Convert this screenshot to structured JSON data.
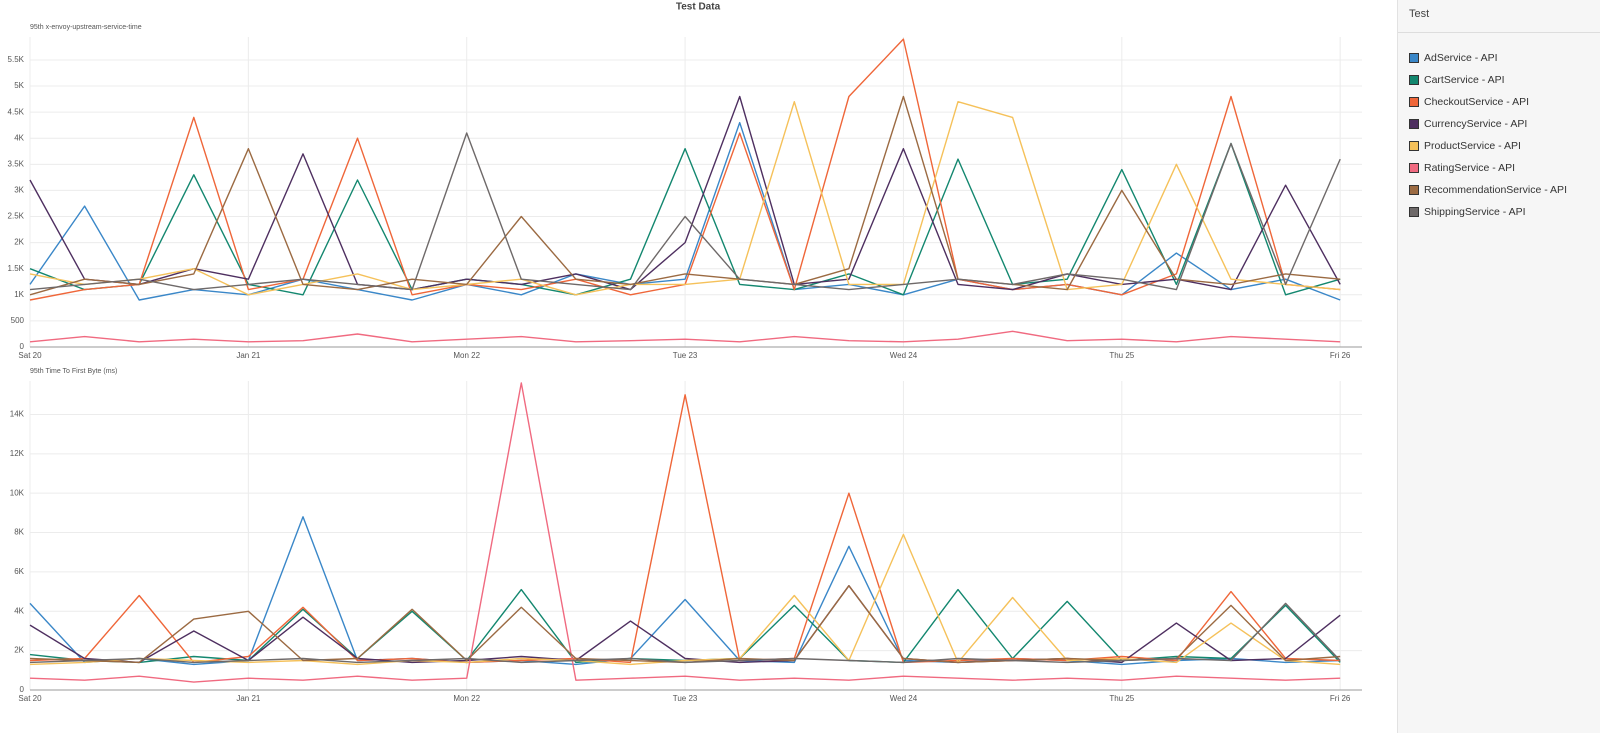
{
  "page_title": "Test Data",
  "legend": {
    "title": "Test"
  },
  "chart_data": [
    {
      "type": "line",
      "subtitle": "95th x-envoy-upstream-service-time",
      "x": [
        0,
        0.25,
        0.5,
        0.75,
        1,
        1.25,
        1.5,
        1.75,
        2,
        2.25,
        2.5,
        2.75,
        3,
        3.25,
        3.5,
        3.75,
        4,
        4.25,
        4.5,
        4.75,
        5,
        5.25,
        5.5,
        5.75,
        6
      ],
      "xlim": [
        0,
        6.1
      ],
      "xticks": [
        {
          "value": 0,
          "label": "Sat 20"
        },
        {
          "value": 1,
          "label": "Jan 21"
        },
        {
          "value": 2,
          "label": "Mon 22"
        },
        {
          "value": 3,
          "label": "Tue 23"
        },
        {
          "value": 4,
          "label": "Wed 24"
        },
        {
          "value": 5,
          "label": "Thu 25"
        },
        {
          "value": 6,
          "label": "Fri 26"
        }
      ],
      "ylim": [
        0,
        5940
      ],
      "yticks": [
        0,
        500,
        {
          "value": 1000,
          "label": "1K"
        },
        {
          "value": 1500,
          "label": "1.5K"
        },
        {
          "value": 2000,
          "label": "2K"
        },
        {
          "value": 2500,
          "label": "2.5K"
        },
        {
          "value": 3000,
          "label": "3K"
        },
        {
          "value": 3500,
          "label": "3.5K"
        },
        {
          "value": 4000,
          "label": "4K"
        },
        {
          "value": 4500,
          "label": "4.5K"
        },
        {
          "value": 5000,
          "label": "5K"
        },
        {
          "value": 5500,
          "label": "5.5K"
        }
      ],
      "grid": true,
      "series": [
        {
          "name": "AdService - API",
          "color": "#3a87c8",
          "values": [
            1200,
            2700,
            900,
            1100,
            1000,
            1300,
            1100,
            900,
            1200,
            1000,
            1400,
            1200,
            1300,
            4300,
            1100,
            1200,
            1000,
            1300,
            1100,
            1200,
            1000,
            1800,
            1100,
            1300,
            900
          ]
        },
        {
          "name": "CartService - API",
          "color": "#13876f",
          "values": [
            1500,
            1100,
            1200,
            3300,
            1200,
            1000,
            3200,
            1100,
            1300,
            1200,
            1000,
            1300,
            3800,
            1200,
            1100,
            1400,
            1000,
            3600,
            1200,
            1300,
            3400,
            1200,
            3900,
            1000,
            1300
          ]
        },
        {
          "name": "CheckoutService - API",
          "color": "#ef6639",
          "values": [
            900,
            1100,
            1200,
            4400,
            1100,
            1300,
            4000,
            1000,
            1200,
            1100,
            1300,
            1000,
            1200,
            4100,
            1100,
            4800,
            5900,
            1300,
            1100,
            1200,
            1000,
            1400,
            4800,
            1200,
            1100
          ]
        },
        {
          "name": "CurrencyService - API",
          "color": "#4e2f60",
          "values": [
            3200,
            1300,
            1200,
            1500,
            1300,
            3700,
            1200,
            1100,
            1300,
            1200,
            1400,
            1100,
            2000,
            4800,
            1200,
            1300,
            3800,
            1200,
            1100,
            1400,
            1200,
            1300,
            1100,
            3100,
            1200
          ]
        },
        {
          "name": "ProductService - API",
          "color": "#f5c15a",
          "values": [
            1400,
            1200,
            1300,
            1500,
            1000,
            1200,
            1400,
            1100,
            1200,
            1300,
            1000,
            1200,
            1200,
            1300,
            4700,
            1200,
            1200,
            4700,
            4400,
            1100,
            1200,
            3500,
            1300,
            1200,
            1100
          ]
        },
        {
          "name": "RatingService - API",
          "color": "#f06a80",
          "values": [
            100,
            200,
            100,
            150,
            100,
            120,
            250,
            100,
            150,
            200,
            100,
            120,
            150,
            100,
            200,
            120,
            100,
            150,
            300,
            120,
            150,
            100,
            200,
            150,
            100
          ]
        },
        {
          "name": "RecommendationService - API",
          "color": "#9b6a42",
          "values": [
            1000,
            1300,
            1200,
            1400,
            3800,
            1200,
            1100,
            1300,
            1200,
            2500,
            1300,
            1200,
            1400,
            1300,
            1200,
            1500,
            4800,
            1300,
            1200,
            1100,
            3000,
            1300,
            1200,
            1400,
            1300
          ]
        },
        {
          "name": "ShippingService - API",
          "color": "#6e6969",
          "values": [
            1100,
            1200,
            1300,
            1100,
            1200,
            1300,
            1200,
            1100,
            4100,
            1300,
            1200,
            1100,
            2500,
            1300,
            1200,
            1100,
            1200,
            1300,
            1200,
            1400,
            1300,
            1100,
            3900,
            1200,
            3600
          ]
        }
      ]
    },
    {
      "type": "line",
      "subtitle": "95th Time To First Byte (ms)",
      "x": [
        0,
        0.25,
        0.5,
        0.75,
        1,
        1.25,
        1.5,
        1.75,
        2,
        2.25,
        2.5,
        2.75,
        3,
        3.25,
        3.5,
        3.75,
        4,
        4.25,
        4.5,
        4.75,
        5,
        5.25,
        5.5,
        5.75,
        6
      ],
      "xlim": [
        0,
        6.1
      ],
      "xticks": [
        {
          "value": 0,
          "label": "Sat 20"
        },
        {
          "value": 1,
          "label": "Jan 21"
        },
        {
          "value": 2,
          "label": "Mon 22"
        },
        {
          "value": 3,
          "label": "Tue 23"
        },
        {
          "value": 4,
          "label": "Wed 24"
        },
        {
          "value": 5,
          "label": "Thu 25"
        },
        {
          "value": 6,
          "label": "Fri 26"
        }
      ],
      "ylim": [
        0,
        15700
      ],
      "yticks": [
        0,
        {
          "value": 2000,
          "label": "2K"
        },
        {
          "value": 4000,
          "label": "4K"
        },
        {
          "value": 6000,
          "label": "6K"
        },
        {
          "value": 8000,
          "label": "8K"
        },
        {
          "value": 10000,
          "label": "10K"
        },
        {
          "value": 12000,
          "label": "12K"
        },
        {
          "value": 14000,
          "label": "14K"
        }
      ],
      "grid": true,
      "series": [
        {
          "name": "AdService - API",
          "color": "#3a87c8",
          "values": [
            4400,
            1400,
            1600,
            1300,
            1500,
            8800,
            1500,
            1600,
            1400,
            1500,
            1300,
            1600,
            4600,
            1500,
            1400,
            7300,
            1500,
            1400,
            1600,
            1500,
            1300,
            1500,
            1600,
            1400,
            1500
          ]
        },
        {
          "name": "CartService - API",
          "color": "#13876f",
          "values": [
            1800,
            1500,
            1400,
            1700,
            1500,
            4100,
            1600,
            4000,
            1500,
            5100,
            1400,
            1600,
            1500,
            1600,
            4300,
            1500,
            1400,
            5100,
            1600,
            4500,
            1500,
            1700,
            1600,
            4300,
            1400
          ]
        },
        {
          "name": "CheckoutService - API",
          "color": "#ef6639",
          "values": [
            1500,
            1600,
            4800,
            1400,
            1700,
            4200,
            1500,
            1600,
            1400,
            1500,
            1600,
            1400,
            15000,
            1500,
            1600,
            10000,
            1400,
            1500,
            1600,
            1500,
            1700,
            1500,
            5000,
            1600,
            1500
          ]
        },
        {
          "name": "CurrencyService - API",
          "color": "#4e2f60",
          "values": [
            3300,
            1600,
            1400,
            3000,
            1500,
            3700,
            1600,
            1400,
            1500,
            1700,
            1500,
            3500,
            1600,
            1400,
            1500,
            5300,
            1600,
            1400,
            1500,
            1600,
            1400,
            3400,
            1500,
            1600,
            3800
          ]
        },
        {
          "name": "ProductService - API",
          "color": "#f5c15a",
          "values": [
            1300,
            1400,
            1600,
            1500,
            1400,
            1500,
            1300,
            1500,
            1400,
            1600,
            1500,
            1300,
            1500,
            1600,
            4800,
            1500,
            7900,
            1400,
            4700,
            1500,
            1600,
            1400,
            3400,
            1500,
            1300
          ]
        },
        {
          "name": "RatingService - API",
          "color": "#f06a80",
          "values": [
            600,
            500,
            700,
            400,
            600,
            500,
            700,
            500,
            600,
            15600,
            500,
            600,
            700,
            500,
            600,
            500,
            700,
            600,
            500,
            600,
            500,
            700,
            600,
            500,
            600
          ]
        },
        {
          "name": "RecommendationService - API",
          "color": "#9b6a42",
          "values": [
            1600,
            1500,
            1400,
            3600,
            4000,
            1500,
            1600,
            4100,
            1500,
            4200,
            1600,
            1500,
            1400,
            1600,
            1500,
            5300,
            1600,
            1400,
            1500,
            1600,
            1500,
            1600,
            4300,
            1500,
            1700
          ]
        },
        {
          "name": "ShippingService - API",
          "color": "#6e6969",
          "values": [
            1400,
            1500,
            1600,
            1400,
            1500,
            1600,
            1400,
            1500,
            1600,
            1400,
            1500,
            1600,
            1400,
            1500,
            1600,
            1500,
            1400,
            1600,
            1500,
            1400,
            1500,
            1600,
            1500,
            4400,
            1500
          ]
        }
      ]
    }
  ]
}
